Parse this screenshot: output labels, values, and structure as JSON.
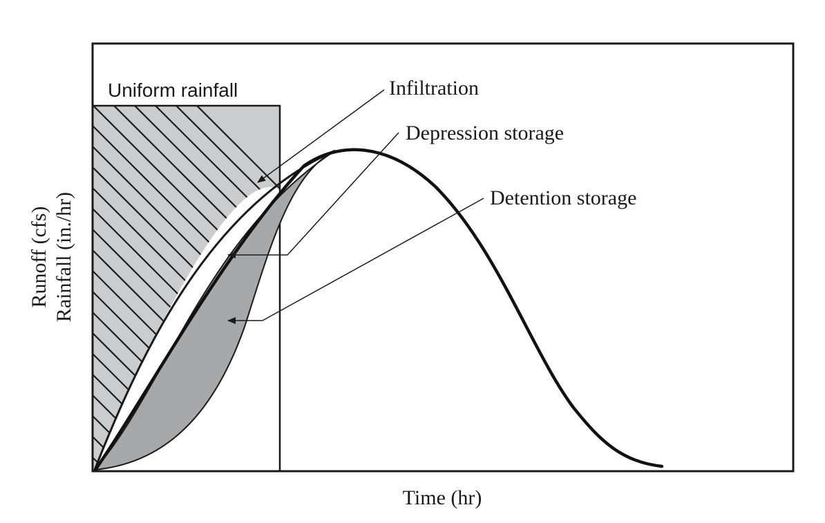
{
  "labels": {
    "uniform_rainfall": "Uniform rainfall",
    "infiltration": "Infiltration",
    "depression_storage": "Depression storage",
    "detention_storage": "Detention storage"
  },
  "axes": {
    "x_title": "Time (hr)",
    "y_title_line1": "Runoff (cfs)",
    "y_title_line2": "Rainfall (in./hr)"
  },
  "colors": {
    "rainfall_fill": "#cbcccd",
    "storage_fill": "#a7a8aa",
    "ink": "#1a1a1a"
  }
}
